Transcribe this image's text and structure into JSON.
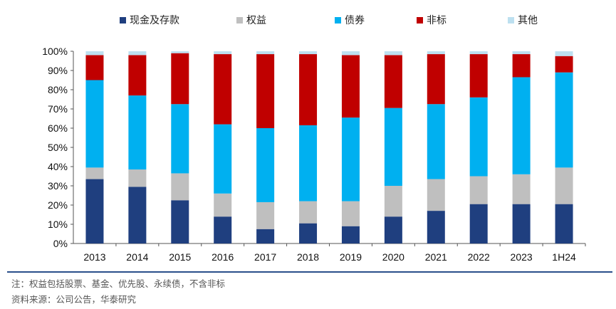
{
  "chart_data": {
    "type": "bar",
    "stacked": true,
    "categories": [
      "2013",
      "2014",
      "2015",
      "2016",
      "2017",
      "2018",
      "2019",
      "2020",
      "2021",
      "2022",
      "2023",
      "1H24"
    ],
    "series": [
      {
        "name": "现金及存款",
        "color": "#1f3f7f",
        "values": [
          33.5,
          29.5,
          22.5,
          14,
          7.5,
          10.5,
          9,
          14,
          17,
          20.5,
          20.5,
          20.5
        ]
      },
      {
        "name": "权益",
        "color": "#bfbfbf",
        "values": [
          6,
          9,
          14,
          12,
          14,
          11.5,
          13,
          16,
          16.5,
          14.5,
          15.5,
          19
        ]
      },
      {
        "name": "债券",
        "color": "#00b0f0",
        "values": [
          45.5,
          38.5,
          36,
          36,
          38.5,
          39.5,
          43.5,
          40.5,
          39,
          41,
          50.5,
          49.5
        ]
      },
      {
        "name": "非标",
        "color": "#c00000",
        "values": [
          13,
          21,
          26.5,
          36.5,
          38.5,
          37,
          32.5,
          27.5,
          26,
          22.5,
          12,
          8.5
        ]
      },
      {
        "name": "其他",
        "color": "#bde0f0",
        "values": [
          2,
          2,
          1,
          1.5,
          1.5,
          1.5,
          2,
          2,
          1.5,
          1.5,
          1.5,
          2.5
        ]
      }
    ],
    "ylim": [
      0,
      100
    ],
    "y_ticks": [
      "0%",
      "10%",
      "20%",
      "30%",
      "40%",
      "50%",
      "60%",
      "70%",
      "80%",
      "90%",
      "100%"
    ],
    "legend_position": "top",
    "grid": false
  },
  "notes": {
    "note": "注：权益包括股票、基金、优先股、永续债，不含非标",
    "source": "资料来源：公司公告，华泰研究"
  }
}
